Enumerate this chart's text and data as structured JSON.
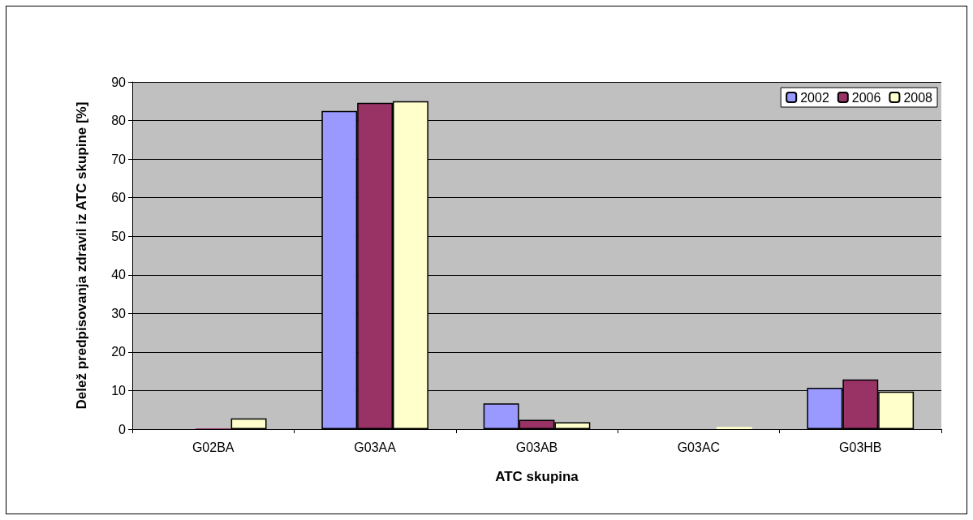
{
  "chart_data": {
    "type": "bar",
    "xlabel": "ATC skupina",
    "ylabel": "Delež predpisovanja zdravil iz ATC skupine [%]",
    "categories": [
      "G02BA",
      "G03AA",
      "G03AB",
      "G03AC",
      "G03HB"
    ],
    "series": [
      {
        "name": "2002",
        "color": "#9999ff",
        "values": [
          0,
          82.5,
          6.7,
          0,
          10.7
        ]
      },
      {
        "name": "2006",
        "color": "#993366",
        "values": [
          0.2,
          84.6,
          2.4,
          0,
          12.9
        ]
      },
      {
        "name": "2008",
        "color": "#ffffcc",
        "values": [
          2.8,
          85.0,
          1.8,
          0.6,
          9.7
        ]
      }
    ],
    "ylim": [
      0,
      90
    ],
    "yticks": [
      0,
      10,
      20,
      30,
      40,
      50,
      60,
      70,
      80,
      90
    ],
    "grid": "y",
    "legend": "top right"
  }
}
